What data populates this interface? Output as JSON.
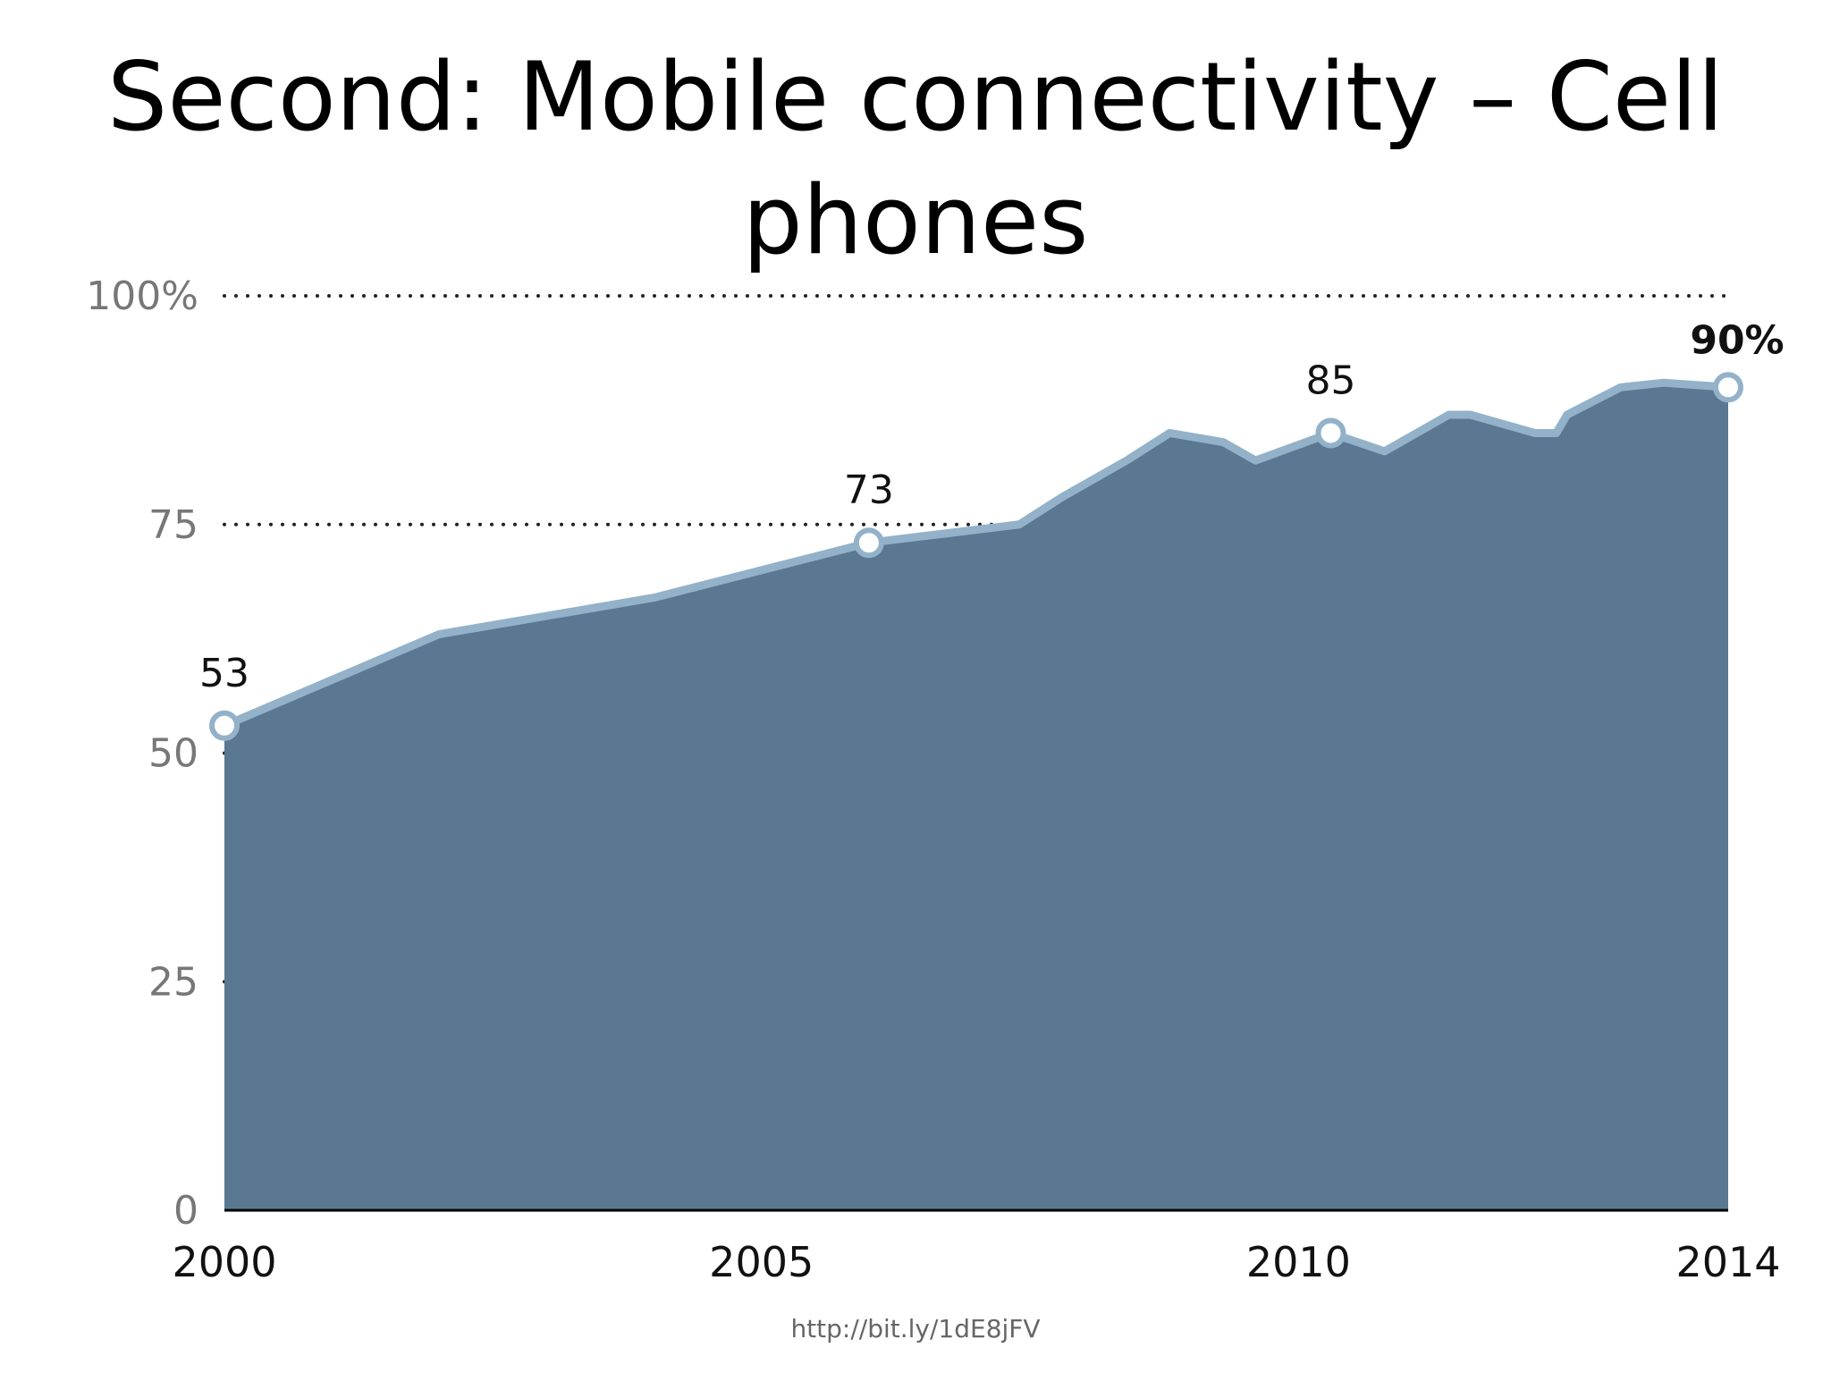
{
  "slide": {
    "title_line1": "Second: Mobile connectivity – Cell",
    "title_line2": "phones",
    "source": "http://bit.ly/1dE8jFV"
  },
  "chart_data": {
    "type": "area",
    "x": [
      2000,
      2001,
      2002,
      2003,
      2004,
      2005,
      2006,
      2006.7,
      2007.4,
      2007.8,
      2008.4,
      2008.8,
      2009.3,
      2009.6,
      2010.3,
      2010.8,
      2011.4,
      2011.6,
      2012.2,
      2012.4,
      2012.5,
      2013,
      2013.4,
      2014
    ],
    "values": [
      53,
      58,
      63,
      65,
      67,
      70,
      73,
      74,
      75,
      78,
      82,
      85,
      84,
      82,
      85,
      83,
      87,
      87,
      85,
      85,
      87,
      90,
      90.5,
      90
    ],
    "highlighted_points": [
      {
        "x": 2000,
        "y": 53,
        "label": "53"
      },
      {
        "x": 2006,
        "y": 73,
        "label": "73"
      },
      {
        "x": 2010.3,
        "y": 85,
        "label": "85"
      },
      {
        "x": 2014,
        "y": 90,
        "label": "90%"
      }
    ],
    "x_ticks": [
      {
        "value": 2000,
        "label": "2000"
      },
      {
        "value": 2005,
        "label": "2005"
      },
      {
        "value": 2010,
        "label": "2010"
      },
      {
        "value": 2014,
        "label": "2014"
      }
    ],
    "y_ticks": [
      {
        "value": 0,
        "label": "0"
      },
      {
        "value": 25,
        "label": "25"
      },
      {
        "value": 50,
        "label": "50"
      },
      {
        "value": 75,
        "label": "75"
      },
      {
        "value": 100,
        "label": "100%"
      }
    ],
    "xlim": [
      2000,
      2014
    ],
    "ylim": [
      0,
      100
    ],
    "grid": "dotted horizontal",
    "title": "",
    "xlabel": "",
    "ylabel": "",
    "colors": {
      "fill": "#5a7891",
      "outline": "#93b2c9",
      "grid": "#222222",
      "tick_text": "#777777",
      "axis_text": "#111111",
      "marker_fill": "#ffffff"
    }
  }
}
